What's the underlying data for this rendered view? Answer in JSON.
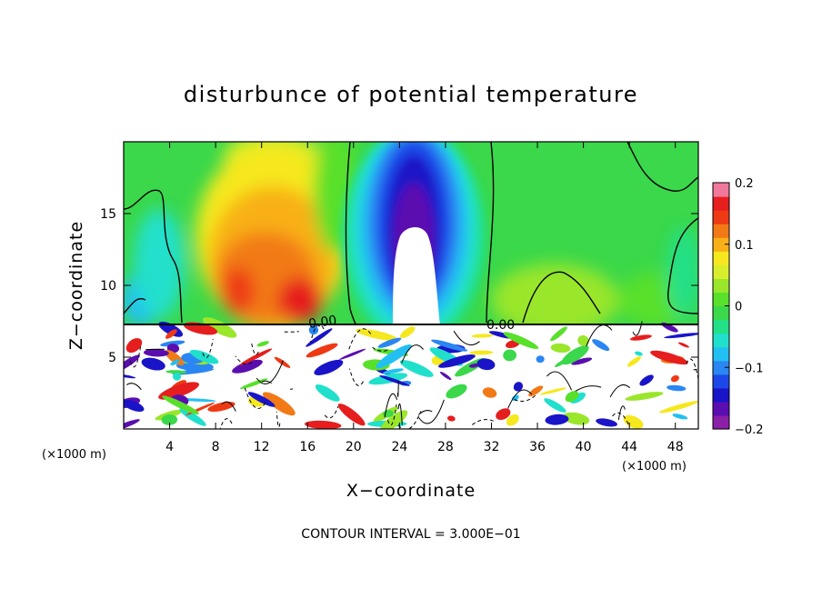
{
  "chart_data": {
    "type": "heatmap",
    "title": "disturbunce of potential temperature",
    "xlabel": "X−coordinate",
    "ylabel": "Z−coordinate",
    "x_unit_left": "(×1000 m)",
    "x_unit_right": "(×1000 m)",
    "xlim": [
      0,
      50
    ],
    "ylim": [
      0,
      20
    ],
    "xticks": [
      4,
      8,
      12,
      16,
      20,
      24,
      28,
      32,
      36,
      40,
      44,
      48
    ],
    "yticks": [
      5,
      10,
      15
    ],
    "xtick_labels": [
      "4",
      "8",
      "12",
      "16",
      "20",
      "24",
      "28",
      "32",
      "36",
      "40",
      "44",
      "48"
    ],
    "ytick_labels": [
      "5",
      "10",
      "15"
    ],
    "colorbar": {
      "min": -0.2,
      "max": 0.2,
      "ticks": [
        0.2,
        0.1,
        0,
        -0.1,
        -0.2
      ],
      "tick_labels": [
        "0.2",
        "0.1",
        "0",
        "−0.1",
        "−0.2"
      ],
      "colors": [
        "#8b1fa8",
        "#5b0eb0",
        "#1a14c8",
        "#1d48e8",
        "#2a86f2",
        "#22c0f2",
        "#20e0cc",
        "#22e088",
        "#3ad84a",
        "#58e02a",
        "#9ae62a",
        "#d8ee2c",
        "#f6e81e",
        "#f8b018",
        "#f27a16",
        "#ee3a14",
        "#e61e1e",
        "#f0789a"
      ]
    },
    "features": [
      {
        "label": "warm anomaly",
        "x": 13,
        "z": 12,
        "value": 0.15
      },
      {
        "label": "cold anomaly",
        "x": 25,
        "z": 13,
        "value": -0.2
      },
      {
        "label": "contour",
        "text": "0.00",
        "x": 17.5,
        "z": 7.5
      },
      {
        "label": "contour",
        "text": "0.00",
        "x": 33.2,
        "z": 7.5
      }
    ],
    "contour_interval_text": "CONTOUR INTERVAL = 3.000E−01"
  }
}
